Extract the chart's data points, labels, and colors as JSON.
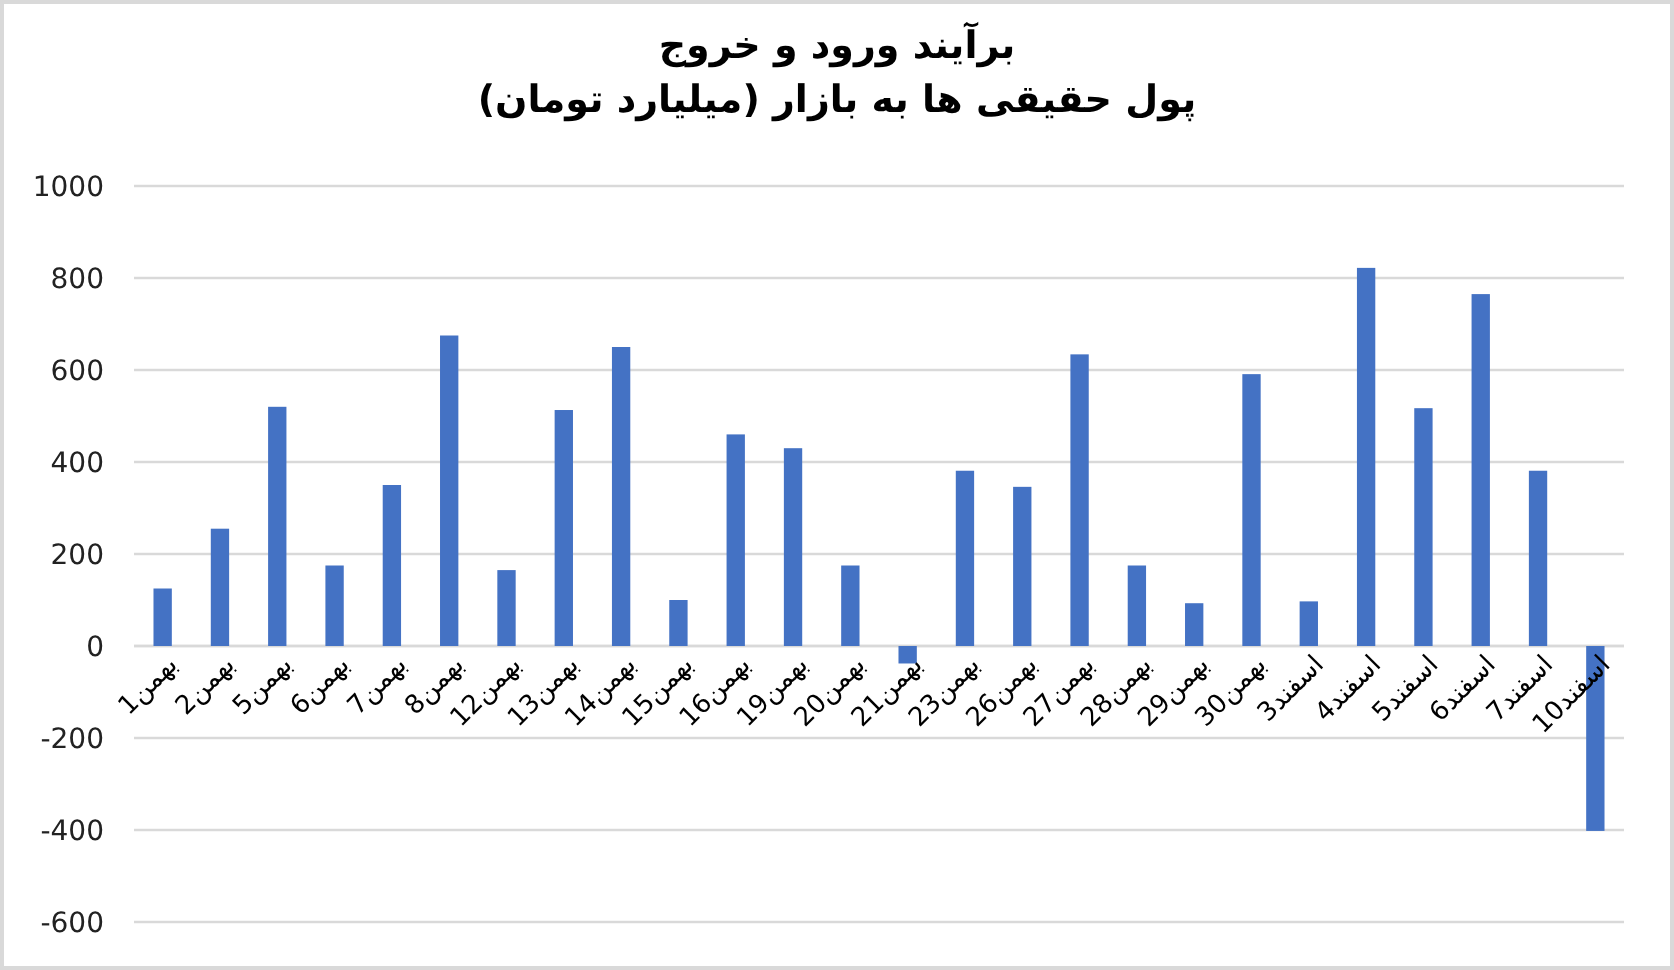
{
  "chart_data": {
    "type": "bar",
    "title": "برآیند ورود و خروج",
    "subtitle": "پول حقیقی ها به بازار (میلیارد تومان)",
    "categories": [
      "1بهمن",
      "2بهمن",
      "5بهمن",
      "6بهمن",
      "7بهمن",
      "8بهمن",
      "12بهمن",
      "13بهمن",
      "14بهمن",
      "15بهمن",
      "16بهمن",
      "19بهمن",
      "20بهمن",
      "21بهمن",
      "23بهمن",
      "26بهمن",
      "27بهمن",
      "28بهمن",
      "29بهمن",
      "30بهمن",
      "3اسفند",
      "4اسفند",
      "5اسفند",
      "6اسفند",
      "7اسفند",
      "10اسفند"
    ],
    "values": [
      125,
      255,
      520,
      175,
      350,
      675,
      165,
      513,
      650,
      100,
      460,
      430,
      175,
      -38,
      381,
      346,
      634,
      175,
      93,
      591,
      97,
      822,
      517,
      765,
      381,
      -402
    ],
    "color": "#4472c4",
    "ylim": [
      -600,
      1000
    ],
    "yticks": [
      -600,
      -400,
      -200,
      0,
      200,
      400,
      600,
      800,
      1000
    ],
    "grid": "y"
  }
}
